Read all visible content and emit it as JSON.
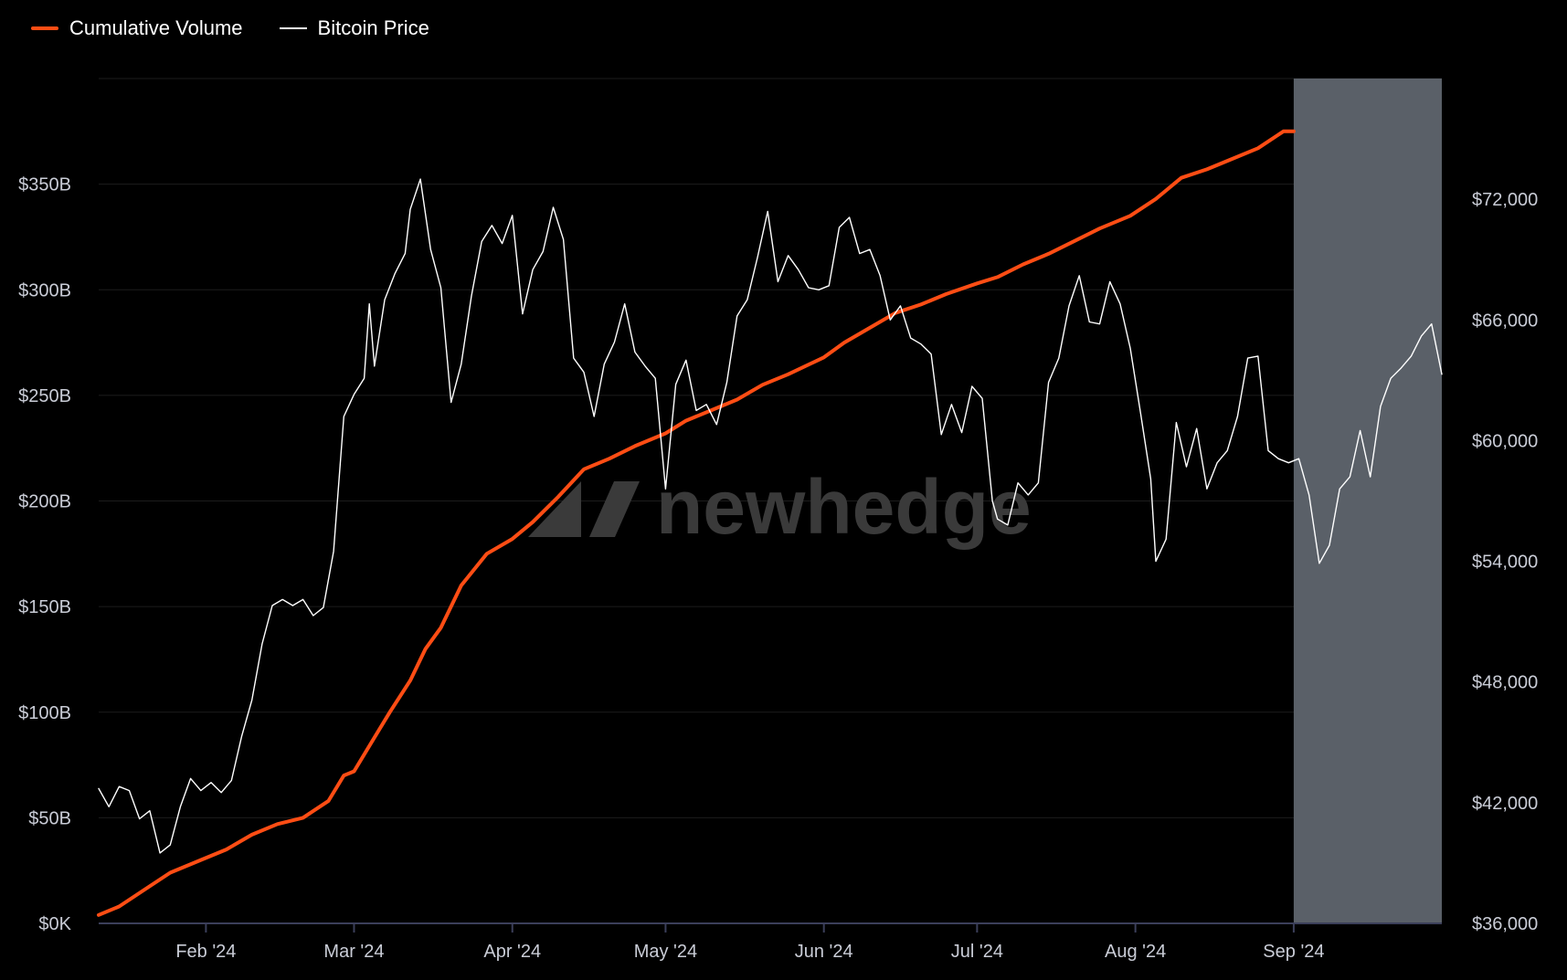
{
  "legend": {
    "volume_label": "Cumulative Volume",
    "price_label": "Bitcoin Price"
  },
  "watermark": {
    "text": "newhedge",
    "logo": "newhedge-logo-icon"
  },
  "colors": {
    "background": "#000000",
    "volume": "#ff4d14",
    "price": "#ffffff",
    "shade": "#5a6068",
    "grid": "#1c1c1c",
    "axis": "#3b3f5a",
    "tick_text": "#c9ccd6"
  },
  "chart_data": {
    "type": "line",
    "x_axis": {
      "type": "date",
      "range": [
        "2024-01-11",
        "2024-09-30"
      ],
      "ticks": [
        {
          "date": "2024-02-01",
          "label": "Feb '24"
        },
        {
          "date": "2024-03-01",
          "label": "Mar '24"
        },
        {
          "date": "2024-04-01",
          "label": "Apr '24"
        },
        {
          "date": "2024-05-01",
          "label": "May '24"
        },
        {
          "date": "2024-06-01",
          "label": "Jun '24"
        },
        {
          "date": "2024-07-01",
          "label": "Jul '24"
        },
        {
          "date": "2024-08-01",
          "label": "Aug '24"
        },
        {
          "date": "2024-09-01",
          "label": "Sep '24"
        }
      ]
    },
    "y_left": {
      "range": [
        0,
        400
      ],
      "unit": "billion USD",
      "ticks": [
        {
          "value": 0,
          "label": "$0K"
        },
        {
          "value": 50,
          "label": "$50B"
        },
        {
          "value": 100,
          "label": "$100B"
        },
        {
          "value": 150,
          "label": "$150B"
        },
        {
          "value": 200,
          "label": "$200B"
        },
        {
          "value": 250,
          "label": "$250B"
        },
        {
          "value": 300,
          "label": "$300B"
        },
        {
          "value": 350,
          "label": "$350B"
        }
      ]
    },
    "y_right": {
      "range": [
        36000,
        78000
      ],
      "unit": "USD",
      "ticks": [
        {
          "value": 36000,
          "label": "$36,000"
        },
        {
          "value": 42000,
          "label": "$42,000"
        },
        {
          "value": 48000,
          "label": "$48,000"
        },
        {
          "value": 54000,
          "label": "$54,000"
        },
        {
          "value": 60000,
          "label": "$60,000"
        },
        {
          "value": 66000,
          "label": "$66,000"
        },
        {
          "value": 72000,
          "label": "$72,000"
        }
      ]
    },
    "grid": true,
    "legend_position": "top-left",
    "shaded_region": {
      "from": "2024-09-01",
      "to": "2024-09-30"
    },
    "series": [
      {
        "name": "Cumulative Volume",
        "axis": "left",
        "points": [
          [
            "2024-01-11",
            4
          ],
          [
            "2024-01-15",
            8
          ],
          [
            "2024-01-20",
            16
          ],
          [
            "2024-01-25",
            24
          ],
          [
            "2024-01-31",
            30
          ],
          [
            "2024-02-05",
            35
          ],
          [
            "2024-02-10",
            42
          ],
          [
            "2024-02-15",
            47
          ],
          [
            "2024-02-20",
            50
          ],
          [
            "2024-02-25",
            58
          ],
          [
            "2024-02-28",
            70
          ],
          [
            "2024-03-01",
            72
          ],
          [
            "2024-03-05",
            88
          ],
          [
            "2024-03-08",
            100
          ],
          [
            "2024-03-12",
            115
          ],
          [
            "2024-03-15",
            130
          ],
          [
            "2024-03-18",
            140
          ],
          [
            "2024-03-22",
            160
          ],
          [
            "2024-03-27",
            175
          ],
          [
            "2024-04-01",
            182
          ],
          [
            "2024-04-05",
            190
          ],
          [
            "2024-04-10",
            202
          ],
          [
            "2024-04-15",
            215
          ],
          [
            "2024-04-20",
            220
          ],
          [
            "2024-04-25",
            226
          ],
          [
            "2024-05-01",
            232
          ],
          [
            "2024-05-05",
            238
          ],
          [
            "2024-05-10",
            243
          ],
          [
            "2024-05-15",
            248
          ],
          [
            "2024-05-20",
            255
          ],
          [
            "2024-05-25",
            260
          ],
          [
            "2024-06-01",
            268
          ],
          [
            "2024-06-05",
            275
          ],
          [
            "2024-06-10",
            282
          ],
          [
            "2024-06-15",
            289
          ],
          [
            "2024-06-20",
            293
          ],
          [
            "2024-06-25",
            298
          ],
          [
            "2024-07-01",
            303
          ],
          [
            "2024-07-05",
            306
          ],
          [
            "2024-07-10",
            312
          ],
          [
            "2024-07-15",
            317
          ],
          [
            "2024-07-20",
            323
          ],
          [
            "2024-07-25",
            329
          ],
          [
            "2024-07-31",
            335
          ],
          [
            "2024-08-05",
            343
          ],
          [
            "2024-08-10",
            353
          ],
          [
            "2024-08-15",
            357
          ],
          [
            "2024-08-20",
            362
          ],
          [
            "2024-08-25",
            367
          ],
          [
            "2024-08-30",
            375
          ],
          [
            "2024-09-01",
            375
          ]
        ]
      },
      {
        "name": "Bitcoin Price",
        "axis": "right",
        "points": [
          [
            "2024-01-11",
            42700
          ],
          [
            "2024-01-13",
            41800
          ],
          [
            "2024-01-15",
            42800
          ],
          [
            "2024-01-17",
            42600
          ],
          [
            "2024-01-19",
            41200
          ],
          [
            "2024-01-21",
            41600
          ],
          [
            "2024-01-23",
            39500
          ],
          [
            "2024-01-25",
            39900
          ],
          [
            "2024-01-27",
            41800
          ],
          [
            "2024-01-29",
            43200
          ],
          [
            "2024-01-31",
            42600
          ],
          [
            "2024-02-02",
            43000
          ],
          [
            "2024-02-04",
            42500
          ],
          [
            "2024-02-06",
            43100
          ],
          [
            "2024-02-08",
            45300
          ],
          [
            "2024-02-10",
            47100
          ],
          [
            "2024-02-12",
            49900
          ],
          [
            "2024-02-14",
            51800
          ],
          [
            "2024-02-16",
            52100
          ],
          [
            "2024-02-18",
            51800
          ],
          [
            "2024-02-20",
            52100
          ],
          [
            "2024-02-22",
            51300
          ],
          [
            "2024-02-24",
            51700
          ],
          [
            "2024-02-26",
            54500
          ],
          [
            "2024-02-28",
            61200
          ],
          [
            "2024-03-01",
            62300
          ],
          [
            "2024-03-03",
            63100
          ],
          [
            "2024-03-04",
            66800
          ],
          [
            "2024-03-05",
            63700
          ],
          [
            "2024-03-07",
            67000
          ],
          [
            "2024-03-09",
            68300
          ],
          [
            "2024-03-11",
            69300
          ],
          [
            "2024-03-12",
            71500
          ],
          [
            "2024-03-14",
            73000
          ],
          [
            "2024-03-16",
            69500
          ],
          [
            "2024-03-18",
            67600
          ],
          [
            "2024-03-20",
            61900
          ],
          [
            "2024-03-22",
            63800
          ],
          [
            "2024-03-24",
            67200
          ],
          [
            "2024-03-26",
            69900
          ],
          [
            "2024-03-28",
            70700
          ],
          [
            "2024-03-30",
            69800
          ],
          [
            "2024-04-01",
            71200
          ],
          [
            "2024-04-03",
            66300
          ],
          [
            "2024-04-05",
            68500
          ],
          [
            "2024-04-07",
            69400
          ],
          [
            "2024-04-09",
            71600
          ],
          [
            "2024-04-11",
            70000
          ],
          [
            "2024-04-13",
            64100
          ],
          [
            "2024-04-15",
            63400
          ],
          [
            "2024-04-17",
            61200
          ],
          [
            "2024-04-19",
            63800
          ],
          [
            "2024-04-21",
            64900
          ],
          [
            "2024-04-23",
            66800
          ],
          [
            "2024-04-25",
            64400
          ],
          [
            "2024-04-27",
            63700
          ],
          [
            "2024-04-29",
            63100
          ],
          [
            "2024-05-01",
            57600
          ],
          [
            "2024-05-03",
            62800
          ],
          [
            "2024-05-05",
            64000
          ],
          [
            "2024-05-07",
            61500
          ],
          [
            "2024-05-09",
            61800
          ],
          [
            "2024-05-11",
            60800
          ],
          [
            "2024-05-13",
            62900
          ],
          [
            "2024-05-15",
            66200
          ],
          [
            "2024-05-17",
            67000
          ],
          [
            "2024-05-19",
            69100
          ],
          [
            "2024-05-21",
            71400
          ],
          [
            "2024-05-23",
            67900
          ],
          [
            "2024-05-25",
            69200
          ],
          [
            "2024-05-27",
            68500
          ],
          [
            "2024-05-29",
            67600
          ],
          [
            "2024-05-31",
            67500
          ],
          [
            "2024-06-02",
            67700
          ],
          [
            "2024-06-04",
            70600
          ],
          [
            "2024-06-06",
            71100
          ],
          [
            "2024-06-08",
            69300
          ],
          [
            "2024-06-10",
            69500
          ],
          [
            "2024-06-12",
            68200
          ],
          [
            "2024-06-14",
            66000
          ],
          [
            "2024-06-16",
            66700
          ],
          [
            "2024-06-18",
            65100
          ],
          [
            "2024-06-20",
            64800
          ],
          [
            "2024-06-22",
            64300
          ],
          [
            "2024-06-24",
            60300
          ],
          [
            "2024-06-26",
            61800
          ],
          [
            "2024-06-28",
            60400
          ],
          [
            "2024-06-30",
            62700
          ],
          [
            "2024-07-02",
            62100
          ],
          [
            "2024-07-04",
            57000
          ],
          [
            "2024-07-05",
            56100
          ],
          [
            "2024-07-07",
            55800
          ],
          [
            "2024-07-09",
            57900
          ],
          [
            "2024-07-11",
            57300
          ],
          [
            "2024-07-13",
            57900
          ],
          [
            "2024-07-15",
            62900
          ],
          [
            "2024-07-17",
            64100
          ],
          [
            "2024-07-19",
            66700
          ],
          [
            "2024-07-21",
            68200
          ],
          [
            "2024-07-23",
            65900
          ],
          [
            "2024-07-25",
            65800
          ],
          [
            "2024-07-27",
            67900
          ],
          [
            "2024-07-29",
            66800
          ],
          [
            "2024-07-31",
            64600
          ],
          [
            "2024-08-02",
            61400
          ],
          [
            "2024-08-04",
            58100
          ],
          [
            "2024-08-05",
            54000
          ],
          [
            "2024-08-07",
            55100
          ],
          [
            "2024-08-09",
            60900
          ],
          [
            "2024-08-11",
            58700
          ],
          [
            "2024-08-13",
            60600
          ],
          [
            "2024-08-15",
            57600
          ],
          [
            "2024-08-17",
            58900
          ],
          [
            "2024-08-19",
            59500
          ],
          [
            "2024-08-21",
            61200
          ],
          [
            "2024-08-23",
            64100
          ],
          [
            "2024-08-25",
            64200
          ],
          [
            "2024-08-27",
            59500
          ],
          [
            "2024-08-29",
            59100
          ],
          [
            "2024-08-31",
            58900
          ],
          [
            "2024-09-02",
            59100
          ],
          [
            "2024-09-04",
            57300
          ],
          [
            "2024-09-06",
            53900
          ],
          [
            "2024-09-08",
            54800
          ],
          [
            "2024-09-10",
            57600
          ],
          [
            "2024-09-12",
            58200
          ],
          [
            "2024-09-14",
            60500
          ],
          [
            "2024-09-16",
            58200
          ],
          [
            "2024-09-18",
            61700
          ],
          [
            "2024-09-20",
            63100
          ],
          [
            "2024-09-22",
            63600
          ],
          [
            "2024-09-24",
            64200
          ],
          [
            "2024-09-26",
            65200
          ],
          [
            "2024-09-28",
            65800
          ],
          [
            "2024-09-30",
            63300
          ]
        ]
      }
    ]
  }
}
